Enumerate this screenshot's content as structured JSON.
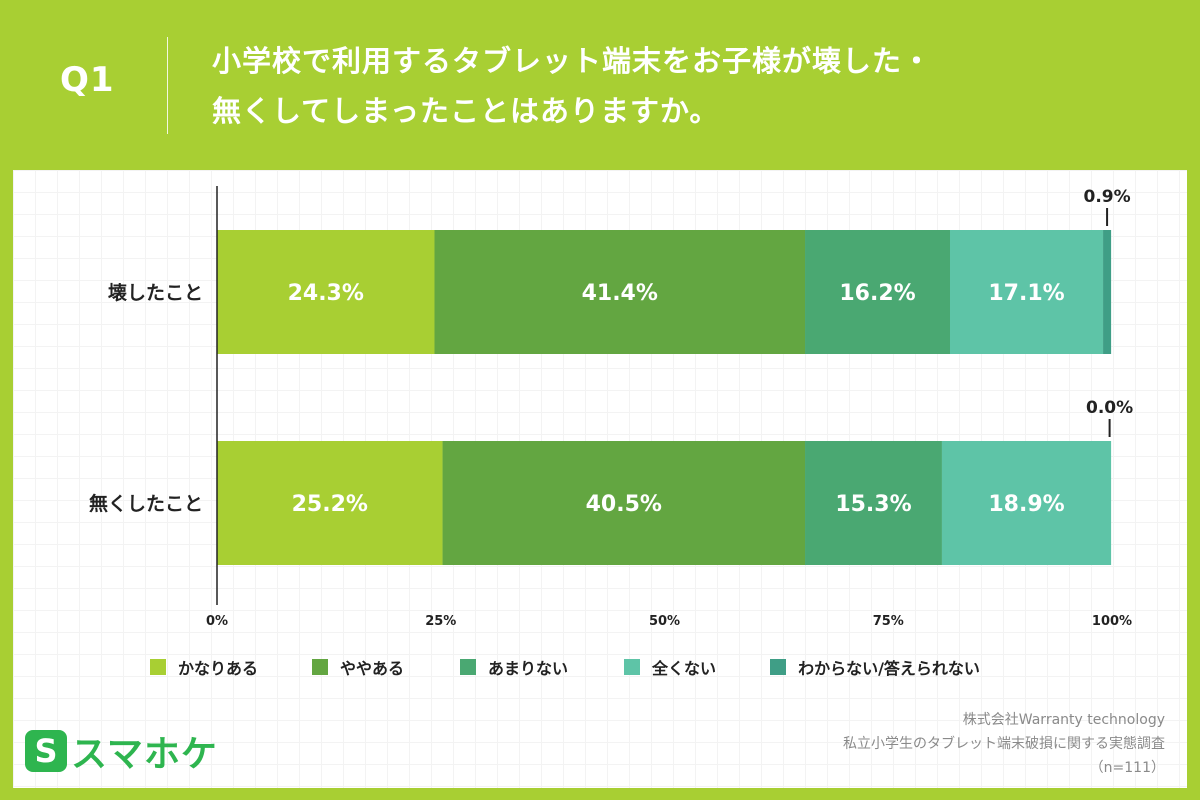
{
  "header": {
    "question_number": "Q1",
    "title_line1": "小学校で利用するタブレット端末をお子様が壊した・",
    "title_line2": "無くしてしまったことはありますか。"
  },
  "colors": {
    "background": "#a8cf33",
    "panel": "#ffffff",
    "series": [
      "#a8cf33",
      "#63a641",
      "#4aa872",
      "#5ec4a7",
      "#3f9e86"
    ],
    "bar_label": "#ffffff",
    "axis": "#222222"
  },
  "chart_data": {
    "type": "bar",
    "orientation": "horizontal",
    "stacked": true,
    "categories": [
      "壊したこと",
      "無くしたこと"
    ],
    "series": [
      {
        "name": "かなりある",
        "values": [
          24.3,
          25.2
        ]
      },
      {
        "name": "ややある",
        "values": [
          41.4,
          40.5
        ]
      },
      {
        "name": "あまりない",
        "values": [
          16.2,
          15.3
        ]
      },
      {
        "name": "全くない",
        "values": [
          17.1,
          18.9
        ]
      },
      {
        "name": "わからない/答えられない",
        "values": [
          0.9,
          0.0
        ]
      }
    ],
    "xlim": [
      0,
      100
    ],
    "x_ticks": [
      "0%",
      "25%",
      "50%",
      "75%",
      "100%"
    ],
    "x_tick_values": [
      0,
      25,
      50,
      75,
      100
    ],
    "value_suffix": "%",
    "legend_position": "bottom",
    "grid": false
  },
  "brand": {
    "logo_mark": "S",
    "logo_text": "スマホケ"
  },
  "source": {
    "line1": "株式会社Warranty technology",
    "line2": "私立小学生のタブレット端末破損に関する実態調査",
    "line3": "（n=111）"
  }
}
